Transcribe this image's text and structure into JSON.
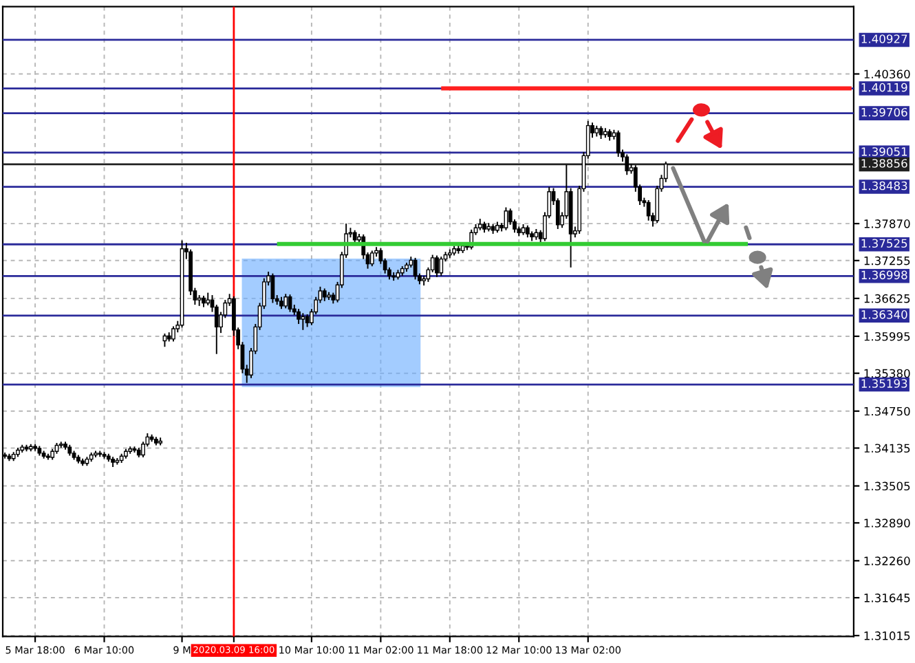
{
  "chart_data": {
    "type": "candlestick",
    "categories": [
      null,
      null,
      null,
      null,
      null,
      null,
      null,
      "5 Mar 18:00",
      null,
      null,
      null,
      null,
      null,
      null,
      null,
      null,
      null,
      null,
      null,
      null,
      null,
      null,
      null,
      "6 Mar 10:00",
      null,
      null,
      null,
      null,
      null,
      null,
      null,
      null,
      null,
      null,
      null,
      null,
      null,
      null,
      null,
      null,
      null,
      "9 M",
      null,
      null,
      null,
      null,
      null,
      null,
      null,
      null,
      null,
      null,
      null,
      "2020.03.09 16:00",
      null,
      null,
      null,
      null,
      null,
      null,
      null,
      null,
      null,
      null,
      null,
      null,
      null,
      null,
      null,
      null,
      null,
      "10 Mar 10:00",
      null,
      null,
      null,
      null,
      null,
      null,
      null,
      null,
      null,
      null,
      null,
      null,
      null,
      null,
      null,
      "11 Mar 02:00",
      null,
      null,
      null,
      null,
      null,
      null,
      null,
      null,
      null,
      null,
      null,
      null,
      null,
      null,
      null,
      "11 Mar 18:00",
      null,
      null,
      null,
      null,
      null,
      null,
      null,
      null,
      null,
      null,
      null,
      null,
      null,
      null,
      null,
      "12 Mar 10:00",
      null,
      null,
      null,
      null,
      null,
      null,
      null,
      null,
      null,
      null,
      null,
      null,
      null,
      null,
      null,
      "13 Mar 02:00",
      null,
      null,
      null,
      null,
      null,
      null,
      null,
      null,
      null,
      null,
      null,
      null,
      null,
      null,
      null,
      null,
      null,
      null,
      null,
      null,
      null,
      null,
      null,
      null,
      null,
      null,
      null,
      null,
      null,
      null,
      null,
      null,
      null,
      null,
      null,
      null,
      null,
      null,
      null,
      null,
      null,
      null,
      null,
      null,
      null,
      null,
      null,
      null,
      null,
      null,
      null,
      null,
      null,
      null,
      null,
      null,
      null,
      null,
      null,
      null,
      null
    ],
    "ohlc": [
      [
        1.3402,
        1.3406,
        1.3396,
        1.34
      ],
      [
        1.34,
        1.3404,
        1.3392,
        1.3396
      ],
      [
        1.3396,
        1.3407,
        1.3392,
        1.3403
      ],
      [
        1.3403,
        1.3414,
        1.3399,
        1.341
      ],
      [
        1.341,
        1.3419,
        1.3406,
        1.3415
      ],
      [
        1.3415,
        1.3419,
        1.3408,
        1.3412
      ],
      [
        1.3412,
        1.342,
        1.3408,
        1.3416
      ],
      [
        1.3416,
        1.342,
        1.3409,
        1.3413
      ],
      [
        1.3413,
        1.3417,
        1.3401,
        1.3405
      ],
      [
        1.3405,
        1.3409,
        1.3396,
        1.34
      ],
      [
        1.34,
        1.3404,
        1.3394,
        1.3398
      ],
      [
        1.3398,
        1.3412,
        1.3394,
        1.3408
      ],
      [
        1.3408,
        1.3422,
        1.3404,
        1.3418
      ],
      [
        1.3418,
        1.3424,
        1.3414,
        1.342
      ],
      [
        1.342,
        1.3424,
        1.3411,
        1.3415
      ],
      [
        1.3415,
        1.3419,
        1.3401,
        1.3405
      ],
      [
        1.3405,
        1.3409,
        1.3394,
        1.3398
      ],
      [
        1.3398,
        1.3402,
        1.3388,
        1.3392
      ],
      [
        1.3392,
        1.3396,
        1.3384,
        1.3388
      ],
      [
        1.3388,
        1.3399,
        1.3384,
        1.3395
      ],
      [
        1.3395,
        1.3406,
        1.3391,
        1.3402
      ],
      [
        1.3402,
        1.3409,
        1.3398,
        1.3405
      ],
      [
        1.3405,
        1.3409,
        1.3399,
        1.3403
      ],
      [
        1.3403,
        1.3407,
        1.3396,
        1.34
      ],
      [
        1.34,
        1.3404,
        1.3391,
        1.3395
      ],
      [
        1.3395,
        1.3399,
        1.3382,
        1.339
      ],
      [
        1.339,
        1.3397,
        1.3386,
        1.3393
      ],
      [
        1.3393,
        1.3404,
        1.3389,
        1.34
      ],
      [
        1.34,
        1.3412,
        1.3396,
        1.3408
      ],
      [
        1.3408,
        1.3416,
        1.3404,
        1.3412
      ],
      [
        1.3412,
        1.3416,
        1.3406,
        1.341
      ],
      [
        1.341,
        1.3414,
        1.3398,
        1.3402
      ],
      [
        1.3402,
        1.3424,
        1.3398,
        1.342
      ],
      [
        1.342,
        1.3438,
        1.3416,
        1.3432
      ],
      [
        1.3432,
        1.3436,
        1.3424,
        1.3428
      ],
      [
        1.3428,
        1.3432,
        1.3418,
        1.3422
      ],
      [
        1.3422,
        1.3431,
        1.3418,
        1.3425
      ],
      [
        1.3592,
        1.3604,
        1.3582,
        1.36
      ],
      [
        1.36,
        1.3606,
        1.3591,
        1.3595
      ],
      [
        1.3595,
        1.3616,
        1.3591,
        1.3612
      ],
      [
        1.3612,
        1.3625,
        1.3606,
        1.3618
      ],
      [
        1.3618,
        1.3759,
        1.3614,
        1.3745
      ],
      [
        1.3745,
        1.3755,
        1.3728,
        1.374
      ],
      [
        1.374,
        1.3744,
        1.3668,
        1.3675
      ],
      [
        1.3675,
        1.368,
        1.3652,
        1.366
      ],
      [
        1.366,
        1.3668,
        1.365,
        1.3663
      ],
      [
        1.3663,
        1.3667,
        1.3648,
        1.3655
      ],
      [
        1.3655,
        1.3672,
        1.3651,
        1.366
      ],
      [
        1.366,
        1.3668,
        1.364,
        1.3648
      ],
      [
        1.3648,
        1.3652,
        1.357,
        1.3615
      ],
      [
        1.3615,
        1.364,
        1.3605,
        1.3635
      ],
      [
        1.3635,
        1.366,
        1.363,
        1.3655
      ],
      [
        1.3655,
        1.367,
        1.365,
        1.3662
      ],
      [
        1.3662,
        1.3666,
        1.36,
        1.361
      ],
      [
        1.361,
        1.3614,
        1.3578,
        1.3585
      ],
      [
        1.3585,
        1.359,
        1.3538,
        1.3545
      ],
      [
        1.3545,
        1.3552,
        1.3522,
        1.3535
      ],
      [
        1.3535,
        1.358,
        1.353,
        1.3575
      ],
      [
        1.3575,
        1.362,
        1.357,
        1.3615
      ],
      [
        1.3615,
        1.3655,
        1.361,
        1.365
      ],
      [
        1.365,
        1.3696,
        1.3645,
        1.369
      ],
      [
        1.369,
        1.3707,
        1.3684,
        1.37
      ],
      [
        1.37,
        1.3704,
        1.3655,
        1.3662
      ],
      [
        1.3662,
        1.3668,
        1.3652,
        1.3658
      ],
      [
        1.3658,
        1.3665,
        1.3645,
        1.365
      ],
      [
        1.365,
        1.367,
        1.3646,
        1.3665
      ],
      [
        1.3665,
        1.3669,
        1.364,
        1.3645
      ],
      [
        1.3645,
        1.3652,
        1.3635,
        1.364
      ],
      [
        1.364,
        1.3645,
        1.362,
        1.3628
      ],
      [
        1.3628,
        1.3638,
        1.361,
        1.3632
      ],
      [
        1.3632,
        1.3636,
        1.3615,
        1.3622
      ],
      [
        1.3622,
        1.3645,
        1.3618,
        1.364
      ],
      [
        1.364,
        1.3665,
        1.3636,
        1.366
      ],
      [
        1.366,
        1.3682,
        1.3655,
        1.3675
      ],
      [
        1.3675,
        1.3679,
        1.3658,
        1.3665
      ],
      [
        1.3665,
        1.3673,
        1.366,
        1.3668
      ],
      [
        1.3668,
        1.3672,
        1.3654,
        1.366
      ],
      [
        1.366,
        1.369,
        1.3656,
        1.3685
      ],
      [
        1.3685,
        1.374,
        1.368,
        1.3735
      ],
      [
        1.3735,
        1.3787,
        1.373,
        1.377
      ],
      [
        1.377,
        1.378,
        1.3764,
        1.3772
      ],
      [
        1.3772,
        1.3776,
        1.3754,
        1.376
      ],
      [
        1.376,
        1.377,
        1.3755,
        1.3765
      ],
      [
        1.3765,
        1.3769,
        1.3728,
        1.3735
      ],
      [
        1.3735,
        1.3739,
        1.3712,
        1.372
      ],
      [
        1.372,
        1.3742,
        1.3716,
        1.3738
      ],
      [
        1.3738,
        1.3748,
        1.3732,
        1.3742
      ],
      [
        1.3742,
        1.3746,
        1.372,
        1.3725
      ],
      [
        1.3725,
        1.3729,
        1.3704,
        1.371
      ],
      [
        1.371,
        1.3714,
        1.3694,
        1.37
      ],
      [
        1.37,
        1.3706,
        1.3692,
        1.3698
      ],
      [
        1.3698,
        1.371,
        1.3694,
        1.3705
      ],
      [
        1.3705,
        1.3716,
        1.37,
        1.3712
      ],
      [
        1.3712,
        1.3722,
        1.3707,
        1.3718
      ],
      [
        1.3718,
        1.3732,
        1.3714,
        1.3726
      ],
      [
        1.3726,
        1.373,
        1.3694,
        1.37
      ],
      [
        1.37,
        1.3704,
        1.3686,
        1.3692
      ],
      [
        1.3692,
        1.37,
        1.3684,
        1.3695
      ],
      [
        1.3695,
        1.3714,
        1.369,
        1.371
      ],
      [
        1.371,
        1.3735,
        1.3706,
        1.373
      ],
      [
        1.373,
        1.3734,
        1.3698,
        1.3705
      ],
      [
        1.3705,
        1.3732,
        1.37,
        1.3728
      ],
      [
        1.3728,
        1.374,
        1.3724,
        1.3735
      ],
      [
        1.3735,
        1.3744,
        1.373,
        1.3738
      ],
      [
        1.3738,
        1.375,
        1.3734,
        1.3745
      ],
      [
        1.3745,
        1.3752,
        1.3737,
        1.3742
      ],
      [
        1.3742,
        1.3755,
        1.3738,
        1.375
      ],
      [
        1.375,
        1.3756,
        1.3743,
        1.3748
      ],
      [
        1.3748,
        1.3777,
        1.3744,
        1.3772
      ],
      [
        1.3772,
        1.3786,
        1.3768,
        1.378
      ],
      [
        1.378,
        1.3795,
        1.3776,
        1.3786
      ],
      [
        1.3786,
        1.379,
        1.3772,
        1.3778
      ],
      [
        1.3778,
        1.3788,
        1.3774,
        1.3782
      ],
      [
        1.3782,
        1.3786,
        1.377,
        1.3776
      ],
      [
        1.3776,
        1.379,
        1.3772,
        1.3784
      ],
      [
        1.3784,
        1.3788,
        1.3774,
        1.378
      ],
      [
        1.378,
        1.3814,
        1.3776,
        1.3808
      ],
      [
        1.3808,
        1.3812,
        1.3785,
        1.379
      ],
      [
        1.379,
        1.3794,
        1.3772,
        1.3778
      ],
      [
        1.3778,
        1.3782,
        1.3766,
        1.3772
      ],
      [
        1.3772,
        1.3786,
        1.3768,
        1.378
      ],
      [
        1.378,
        1.3784,
        1.3764,
        1.377
      ],
      [
        1.377,
        1.3774,
        1.3758,
        1.3765
      ],
      [
        1.3765,
        1.3778,
        1.376,
        1.3772
      ],
      [
        1.3772,
        1.3776,
        1.3755,
        1.3762
      ],
      [
        1.3762,
        1.3806,
        1.3758,
        1.38
      ],
      [
        1.38,
        1.3848,
        1.3796,
        1.384
      ],
      [
        1.384,
        1.3846,
        1.3818,
        1.3825
      ],
      [
        1.3825,
        1.3829,
        1.3778,
        1.3785
      ],
      [
        1.3785,
        1.3806,
        1.378,
        1.38
      ],
      [
        1.38,
        1.3885,
        1.3795,
        1.384
      ],
      [
        1.384,
        1.3846,
        1.3714,
        1.377
      ],
      [
        1.377,
        1.3782,
        1.3764,
        1.3775
      ],
      [
        1.3775,
        1.385,
        1.377,
        1.3845
      ],
      [
        1.3845,
        1.3906,
        1.384,
        1.39
      ],
      [
        1.39,
        1.3958,
        1.3895,
        1.395
      ],
      [
        1.395,
        1.3955,
        1.393,
        1.3938
      ],
      [
        1.3938,
        1.395,
        1.3932,
        1.3945
      ],
      [
        1.3945,
        1.3949,
        1.3928,
        1.3935
      ],
      [
        1.3935,
        1.3946,
        1.393,
        1.394
      ],
      [
        1.394,
        1.3944,
        1.3925,
        1.3932
      ],
      [
        1.3932,
        1.3943,
        1.3927,
        1.3938
      ],
      [
        1.3938,
        1.3942,
        1.3898,
        1.3905
      ],
      [
        1.3905,
        1.391,
        1.389,
        1.3898
      ],
      [
        1.3898,
        1.3902,
        1.3868,
        1.3875
      ],
      [
        1.3875,
        1.3886,
        1.387,
        1.388
      ],
      [
        1.388,
        1.3884,
        1.384,
        1.3848
      ],
      [
        1.3848,
        1.3852,
        1.3818,
        1.3825
      ],
      [
        1.3825,
        1.383,
        1.3815,
        1.3822
      ],
      [
        1.3822,
        1.3826,
        1.3792,
        1.38
      ],
      [
        1.38,
        1.3805,
        1.3782,
        1.3792
      ],
      [
        1.3792,
        1.385,
        1.3788,
        1.3845
      ],
      [
        1.3845,
        1.3868,
        1.384,
        1.3862
      ],
      [
        1.3862,
        1.389,
        1.3856,
        1.3886
      ],
      null,
      null,
      null,
      null,
      null,
      null,
      null,
      null,
      null,
      null,
      null,
      null,
      null,
      null,
      null,
      null,
      null,
      null,
      null,
      null,
      null,
      null,
      null,
      null,
      null,
      null,
      null,
      null,
      null,
      null,
      null,
      null,
      null,
      null,
      null,
      null,
      null,
      null,
      null,
      null,
      null,
      null,
      null
    ],
    "series": [
      {
        "type": "line",
        "color": "#33cc33",
        "values": [
          null,
          null,
          null,
          null,
          null,
          null,
          null,
          null,
          null,
          null,
          null,
          null,
          null,
          null,
          null,
          null,
          null,
          null,
          null,
          null,
          null,
          null,
          null,
          null,
          null,
          null,
          null,
          null,
          null,
          null,
          null,
          null,
          null,
          null,
          null,
          null,
          null,
          null,
          null,
          null,
          null,
          null,
          null,
          null,
          null,
          null,
          null,
          null,
          null,
          null,
          null,
          null,
          null,
          null,
          null,
          null,
          null,
          null,
          null,
          null,
          null,
          null,
          null,
          1.3753,
          1.3753,
          1.3753,
          1.3753,
          1.3753,
          1.3753,
          1.3753,
          1.3753,
          1.3753,
          1.3753,
          1.3753,
          1.3753,
          1.3753,
          1.3753,
          1.3753,
          1.3753,
          1.3753,
          1.3753,
          1.3753,
          1.3753,
          1.3753,
          1.3753,
          1.3753,
          1.3753,
          1.3753,
          1.3753,
          1.3753,
          1.3753,
          1.3753,
          1.3753,
          1.3753,
          1.3753,
          1.3753,
          1.3753,
          1.3753,
          1.3753,
          1.3753,
          1.3753,
          1.3753,
          1.3753,
          1.3753,
          1.3753,
          1.3753,
          1.3753,
          1.3753,
          1.3753,
          1.3753,
          1.3753,
          1.3753,
          1.3753,
          1.3753,
          1.3753,
          1.3753,
          1.3753,
          1.3753,
          1.3753,
          1.3753,
          1.3753,
          1.3753,
          1.3753,
          1.3753,
          1.3753,
          1.3753,
          1.3753,
          1.3753,
          1.3753,
          1.3753,
          1.3753,
          1.3753,
          1.3753,
          1.3753,
          1.3753,
          1.3753,
          1.3753,
          1.3753,
          1.3753,
          1.3753,
          1.3753,
          1.3753,
          1.3753,
          1.3753,
          1.3753,
          1.3753,
          1.3753,
          1.3753,
          1.3753,
          1.3753,
          1.3753,
          1.3753,
          1.3753,
          1.3753,
          1.3753,
          1.3753,
          1.3753,
          1.3753,
          1.3753,
          1.3753,
          1.3753,
          1.3753,
          1.3753,
          1.3753,
          1.3753,
          1.3753,
          1.3753,
          1.3753,
          1.3753,
          1.3753,
          1.3753,
          1.3753,
          1.3753,
          null,
          null,
          null,
          null,
          null,
          null,
          null,
          null,
          null,
          null,
          null,
          null,
          null,
          null,
          null,
          null,
          null,
          null,
          null,
          null,
          null,
          null,
          null,
          null
        ]
      },
      {
        "type": "line",
        "color": "#ff2020",
        "values": [
          null,
          null,
          null,
          null,
          null,
          null,
          null,
          null,
          null,
          null,
          null,
          null,
          null,
          null,
          null,
          null,
          null,
          null,
          null,
          null,
          null,
          null,
          null,
          null,
          null,
          null,
          null,
          null,
          null,
          null,
          null,
          null,
          null,
          null,
          null,
          null,
          null,
          null,
          null,
          null,
          null,
          null,
          null,
          null,
          null,
          null,
          null,
          null,
          null,
          null,
          null,
          null,
          null,
          null,
          null,
          null,
          null,
          null,
          null,
          null,
          null,
          null,
          null,
          null,
          null,
          null,
          null,
          null,
          null,
          null,
          null,
          null,
          null,
          null,
          null,
          null,
          null,
          null,
          null,
          null,
          null,
          null,
          null,
          null,
          null,
          null,
          null,
          null,
          null,
          null,
          null,
          null,
          null,
          null,
          null,
          null,
          null,
          null,
          null,
          null,
          null,
          1.4012,
          1.4012,
          1.4012,
          1.4012,
          1.4012,
          1.4012,
          1.4012,
          1.4012,
          1.4012,
          1.4012,
          1.4012,
          1.4012,
          1.4012,
          1.4012,
          1.4012,
          1.4012,
          1.4012,
          1.4012,
          1.4012,
          1.4012,
          1.4012,
          1.4012,
          1.4012,
          1.4012,
          1.4012,
          1.4012,
          1.4012,
          1.4012,
          1.4012,
          1.4012,
          1.4012,
          1.4012,
          1.4012,
          1.4012,
          1.4012,
          1.4012,
          1.4012,
          1.4012,
          1.4012,
          1.4012,
          1.4012,
          1.4012,
          1.4012,
          1.4012,
          1.4012,
          1.4012,
          1.4012,
          1.4012,
          1.4012,
          1.4012,
          1.4012,
          1.4012,
          1.4012,
          1.4012,
          1.4012,
          1.4012,
          1.4012,
          1.4012,
          1.4012,
          1.4012,
          1.4012,
          1.4012,
          1.4012,
          1.4012,
          1.4012,
          1.4012,
          1.4012,
          1.4012,
          1.4012,
          1.4012,
          1.4012,
          1.4012,
          1.4012,
          1.4012,
          1.4012,
          1.4012,
          1.4012,
          1.4012,
          1.4012,
          1.4012,
          1.4012,
          1.4012,
          1.4012,
          1.4012,
          1.4012,
          1.4012,
          1.4012,
          1.4012,
          1.4012,
          1.4012,
          1.4012,
          1.4012,
          1.4012,
          1.4012,
          1.4012,
          1.4012
        ]
      }
    ],
    "ylim": [
      1.31,
      1.4148
    ],
    "yticks": [
      {
        "value": 1.4036,
        "label": "1.40360"
      },
      {
        "value": 1.3787,
        "label": "1.37870"
      },
      {
        "value": 1.37255,
        "label": "1.37255"
      },
      {
        "value": 1.36625,
        "label": "1.36625"
      },
      {
        "value": 1.35995,
        "label": "1.35995"
      },
      {
        "value": 1.3538,
        "label": "1.35380"
      },
      {
        "value": 1.3475,
        "label": "1.34750"
      },
      {
        "value": 1.34135,
        "label": "1.34135"
      },
      {
        "value": 1.33505,
        "label": "1.33505"
      },
      {
        "value": 1.3289,
        "label": "1.32890"
      },
      {
        "value": 1.3226,
        "label": "1.32260"
      },
      {
        "value": 1.31645,
        "label": "1.31645"
      },
      {
        "value": 1.31015,
        "label": "1.31015"
      }
    ],
    "grid": true,
    "ref_lines": [
      {
        "axis": "y",
        "value": 1.40927,
        "label": "1.40927",
        "color": "#2a2a9a"
      },
      {
        "axis": "y",
        "value": 1.40119,
        "label": "1.40119",
        "color": "#2a2a9a"
      },
      {
        "axis": "y",
        "value": 1.39706,
        "label": "1.39706",
        "color": "#2a2a9a"
      },
      {
        "axis": "y",
        "value": 1.39051,
        "label": "1.39051",
        "color": "#2a2a9a"
      },
      {
        "axis": "y",
        "value": 1.38856,
        "label": "1.38856",
        "color": "#202020"
      },
      {
        "axis": "y",
        "value": 1.38483,
        "label": "1.38483",
        "color": "#2a2a9a"
      },
      {
        "axis": "y",
        "value": 1.37525,
        "label": "1.37525",
        "color": "#2a2a9a"
      },
      {
        "axis": "y",
        "value": 1.36998,
        "label": "1.36998",
        "color": "#2a2a9a"
      },
      {
        "axis": "y",
        "value": 1.3634,
        "label": "1.36340",
        "color": "#2a2a9a"
      },
      {
        "axis": "y",
        "value": 1.35193,
        "label": "1.35193",
        "color": "#2a2a9a"
      },
      {
        "axis": "x",
        "value": "2020.03.09 16:00",
        "color": "#ff0000"
      }
    ]
  }
}
